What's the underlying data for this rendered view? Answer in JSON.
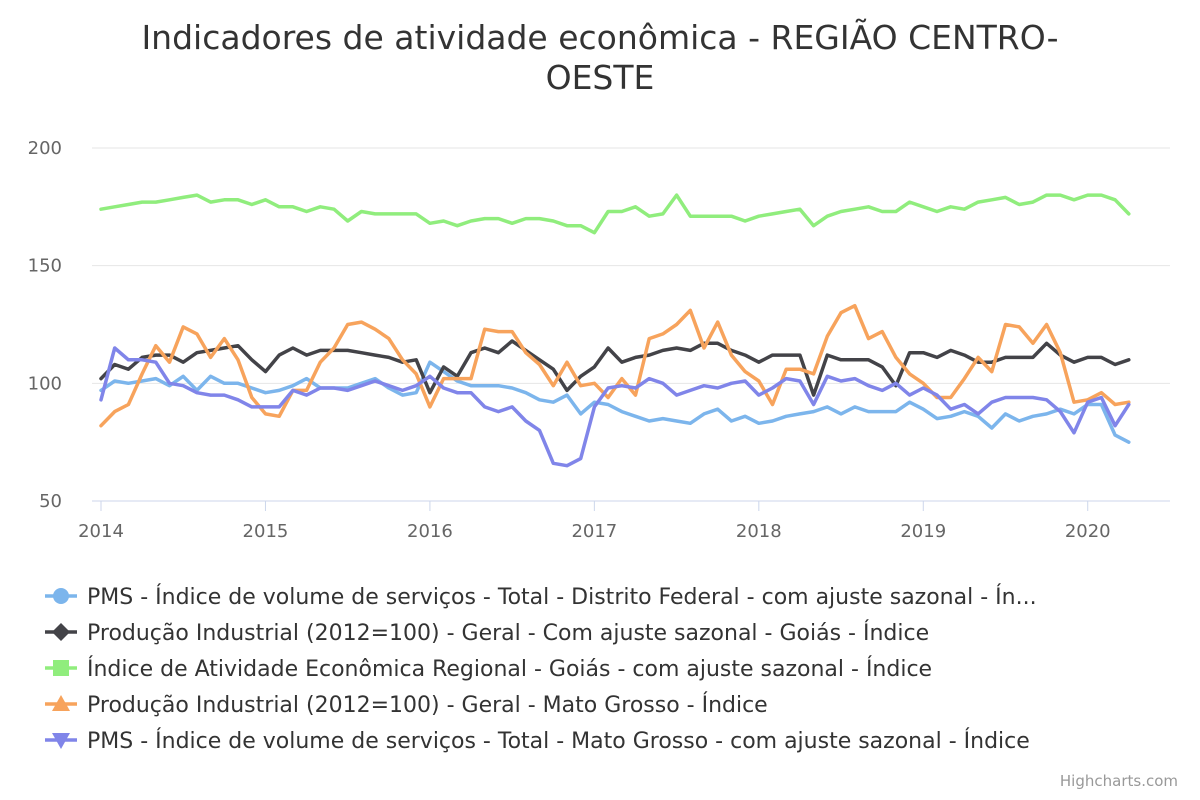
{
  "title_line1": "Indicadores de atividade econômica - REGIÃO CENTRO-",
  "title_line2": "OESTE",
  "credit": "Highcharts.com",
  "chart_data": {
    "type": "line",
    "title": "Indicadores de atividade econômica - REGIÃO CENTRO-OESTE",
    "ylim": [
      50,
      200
    ],
    "yticks": [
      50,
      100,
      150,
      200
    ],
    "xlim": [
      2014,
      2020.33
    ],
    "xticks": [
      "2014",
      "2015",
      "2016",
      "2017",
      "2018",
      "2019",
      "2020"
    ],
    "grid": "horizontal",
    "legend_position": "bottom",
    "series": [
      {
        "name": "PMS - Índice de volume de serviços - Total - Distrito Federal - com ajuste sazonal - Ín...",
        "color": "#7cb5ec",
        "marker": "circle",
        "values": [
          97,
          101,
          100,
          101,
          102,
          99,
          103,
          97,
          103,
          100,
          100,
          98,
          96,
          97,
          99,
          102,
          98,
          98,
          98,
          100,
          102,
          98,
          95,
          96,
          109,
          105,
          101,
          99,
          99,
          99,
          98,
          96,
          93,
          92,
          95,
          87,
          92,
          91,
          88,
          86,
          84,
          85,
          84,
          83,
          87,
          89,
          84,
          86,
          83,
          84,
          86,
          87,
          88,
          90,
          87,
          90,
          88,
          88,
          88,
          92,
          89,
          85,
          86,
          88,
          86,
          81,
          87,
          84,
          86,
          87,
          89,
          87,
          91,
          91,
          78,
          75
        ]
      },
      {
        "name": "Produção Industrial (2012=100) - Geral - Com ajuste sazonal - Goiás - Índice",
        "color": "#434348",
        "marker": "diamond",
        "values": [
          102,
          108,
          106,
          111,
          112,
          112,
          109,
          113,
          114,
          115,
          116,
          110,
          105,
          112,
          115,
          112,
          114,
          114,
          114,
          113,
          112,
          111,
          109,
          110,
          96,
          107,
          103,
          113,
          115,
          113,
          118,
          114,
          110,
          106,
          97,
          103,
          107,
          115,
          109,
          111,
          112,
          114,
          115,
          114,
          117,
          117,
          114,
          112,
          109,
          112,
          112,
          112,
          95,
          112,
          110,
          110,
          110,
          107,
          99,
          113,
          113,
          111,
          114,
          112,
          109,
          109,
          111,
          111,
          111,
          117,
          112,
          109,
          111,
          111,
          108,
          110
        ]
      },
      {
        "name": "Índice de Atividade Econômica Regional - Goiás - com ajuste sazonal - Índice",
        "color": "#90ed7d",
        "marker": "square",
        "values": [
          174,
          175,
          176,
          177,
          177,
          178,
          179,
          180,
          177,
          178,
          178,
          176,
          178,
          175,
          175,
          173,
          175,
          174,
          169,
          173,
          172,
          172,
          172,
          172,
          168,
          169,
          167,
          169,
          170,
          170,
          168,
          170,
          170,
          169,
          167,
          167,
          164,
          173,
          173,
          175,
          171,
          172,
          180,
          171,
          171,
          171,
          171,
          169,
          171,
          172,
          173,
          174,
          167,
          171,
          173,
          174,
          175,
          173,
          173,
          177,
          175,
          173,
          175,
          174,
          177,
          178,
          179,
          176,
          177,
          180,
          180,
          178,
          180,
          180,
          178,
          172
        ]
      },
      {
        "name": "Produção Industrial (2012=100) - Geral - Mato Grosso - Índice",
        "color": "#f7a35c",
        "marker": "triangle",
        "values": [
          82,
          88,
          91,
          104,
          116,
          109,
          124,
          121,
          111,
          119,
          110,
          94,
          87,
          86,
          97,
          97,
          109,
          115,
          125,
          126,
          123,
          119,
          110,
          104,
          90,
          102,
          102,
          102,
          123,
          122,
          122,
          113,
          108,
          99,
          109,
          99,
          100,
          94,
          102,
          95,
          119,
          121,
          125,
          131,
          115,
          126,
          112,
          105,
          101,
          91,
          106,
          106,
          104,
          120,
          130,
          133,
          119,
          122,
          111,
          104,
          100,
          94,
          94,
          102,
          111,
          105,
          125,
          124,
          117,
          125,
          113,
          92,
          93,
          96,
          91,
          92
        ]
      },
      {
        "name": "PMS - Índice de volume de serviços - Total - Mato Grosso - com ajuste sazonal - Índice",
        "color": "#8085e9",
        "marker": "triangle-down",
        "values": [
          93,
          115,
          110,
          110,
          109,
          100,
          99,
          96,
          95,
          95,
          93,
          90,
          90,
          90,
          97,
          95,
          98,
          98,
          97,
          99,
          101,
          99,
          97,
          99,
          103,
          98,
          96,
          96,
          90,
          88,
          90,
          84,
          80,
          66,
          65,
          68,
          90,
          98,
          99,
          98,
          102,
          100,
          95,
          97,
          99,
          98,
          100,
          101,
          95,
          98,
          102,
          101,
          91,
          103,
          101,
          102,
          99,
          97,
          100,
          95,
          98,
          95,
          89,
          91,
          87,
          92,
          94,
          94,
          94,
          93,
          88,
          79,
          92,
          94,
          82,
          91
        ]
      }
    ]
  }
}
